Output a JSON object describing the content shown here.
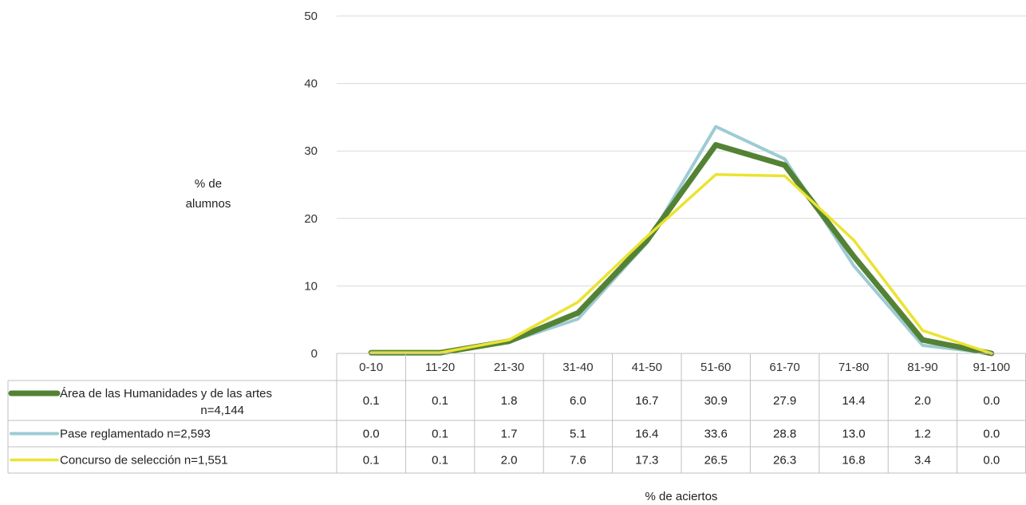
{
  "chart_data": {
    "type": "line",
    "categories": [
      "0-10",
      "11-20",
      "21-30",
      "31-40",
      "41-50",
      "51-60",
      "61-70",
      "71-80",
      "81-90",
      "91-100"
    ],
    "series": [
      {
        "name": "Área de las Humanidades y de las artes n=4,144",
        "legend_lines": [
          "Área de las Humanidades y de las artes",
          "n=4,144"
        ],
        "color": "#548235",
        "values": [
          0.1,
          0.1,
          1.8,
          6.0,
          16.7,
          30.9,
          27.9,
          14.4,
          2.0,
          0.0
        ]
      },
      {
        "name": "Pase reglamentado n=2,593",
        "legend_lines": [
          "Pase reglamentado n=2,593"
        ],
        "color": "#9DCBD4",
        "values": [
          0.0,
          0.1,
          1.7,
          5.1,
          16.4,
          33.6,
          28.8,
          13.0,
          1.2,
          0.0
        ]
      },
      {
        "name": "Concurso de selección n=1,551",
        "legend_lines": [
          "Concurso de selección n=1,551"
        ],
        "color": "#EBE332",
        "values": [
          0.1,
          0.1,
          2.0,
          7.6,
          17.3,
          26.5,
          26.3,
          16.8,
          3.4,
          0.0
        ]
      }
    ],
    "ylabel_lines": [
      "% de",
      "alumnos"
    ],
    "xlabel": "% de aciertos",
    "ylim": [
      0,
      50
    ],
    "yticks": [
      0,
      10,
      20,
      30,
      40,
      50
    ],
    "grid": true,
    "legend": "data table below chart"
  }
}
